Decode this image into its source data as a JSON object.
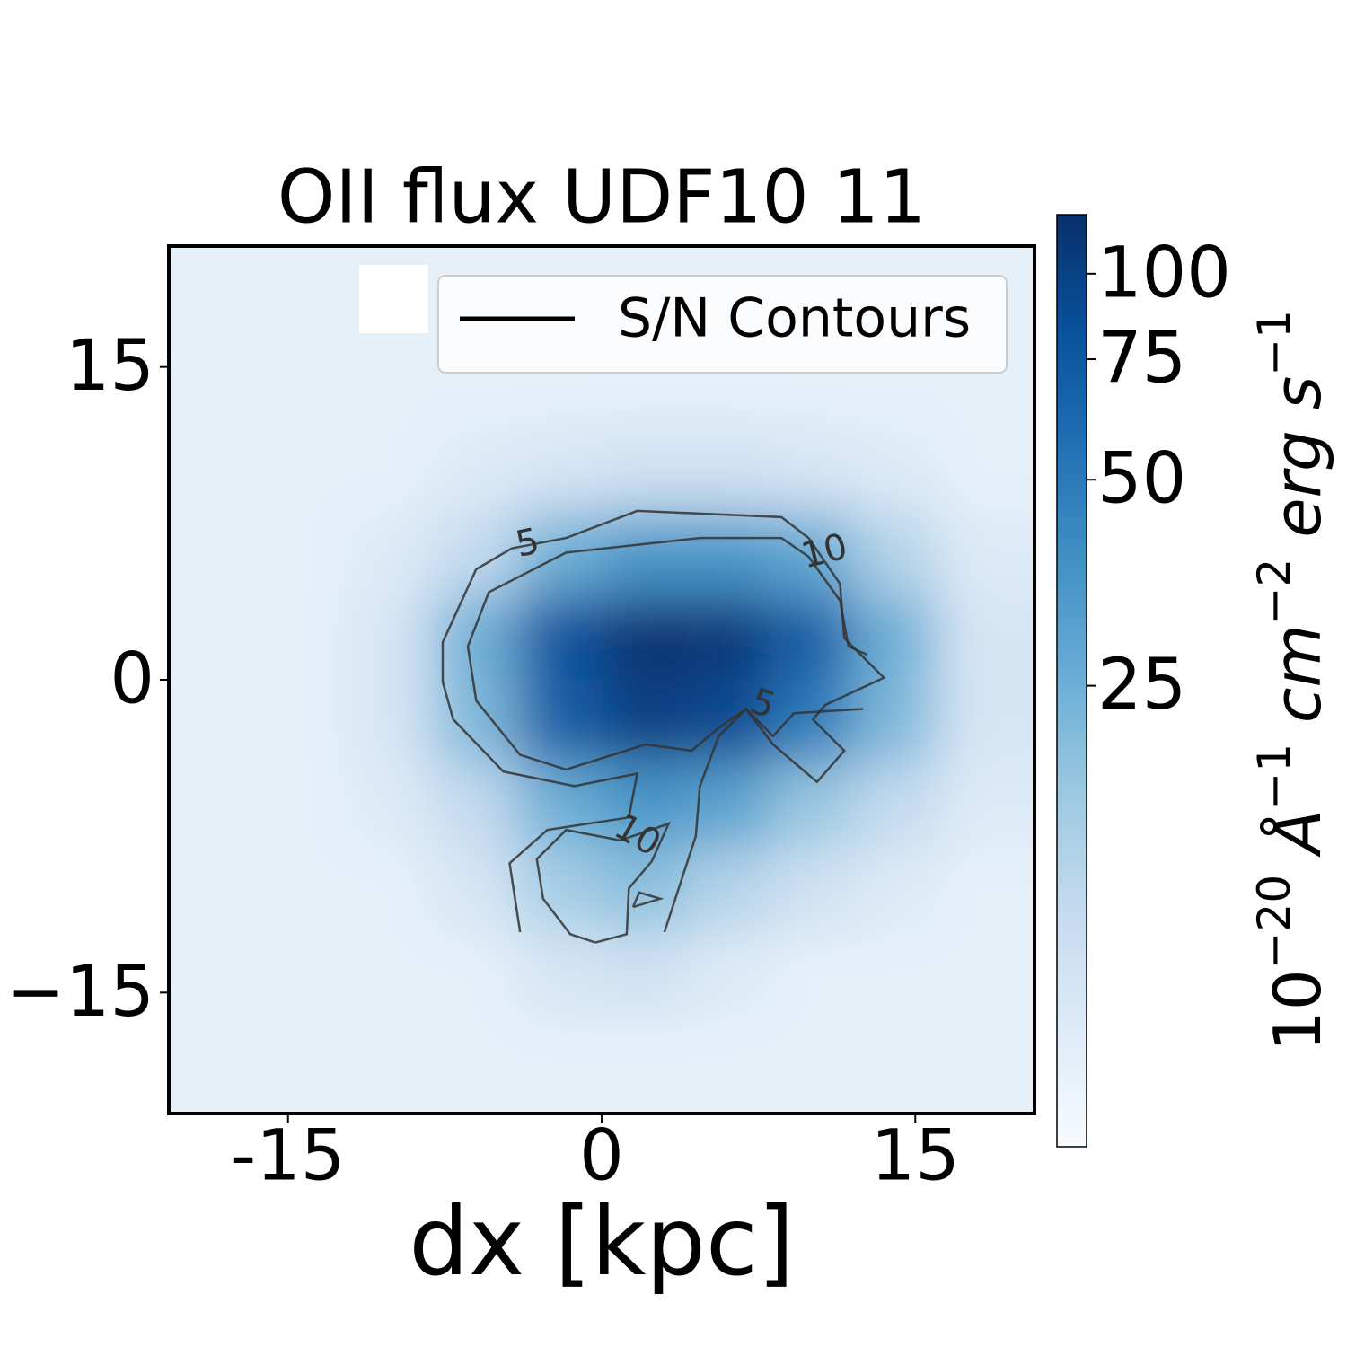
{
  "chart_data": {
    "type": "heatmap",
    "title": "OII flux UDF10 11",
    "xlabel": "dx [kpc]",
    "xlim": [
      -20.7,
      20.7
    ],
    "ylim": [
      -20.8,
      20.8
    ],
    "xticks": [
      -15,
      0,
      15
    ],
    "yticks": [
      {
        "value": -15,
        "label": "−15"
      },
      0,
      15
    ],
    "x": [
      -18,
      -14,
      -10,
      -6,
      -2,
      2,
      6,
      10,
      14,
      18
    ],
    "y": [
      18,
      14,
      10,
      6,
      2,
      -2,
      -6,
      -10,
      -14,
      -18
    ],
    "z": [
      [
        7,
        7,
        7,
        7,
        7,
        7,
        7,
        7,
        7,
        7
      ],
      [
        7,
        7,
        7,
        7,
        7,
        7,
        7,
        7,
        7,
        7
      ],
      [
        7,
        7,
        7,
        8,
        9,
        10,
        10,
        9,
        8,
        7
      ],
      [
        7,
        7,
        8,
        12,
        25,
        35,
        35,
        28,
        14,
        8
      ],
      [
        7,
        7,
        9,
        25,
        80,
        115,
        110,
        70,
        25,
        9
      ],
      [
        7,
        7,
        9,
        22,
        70,
        100,
        90,
        50,
        22,
        9
      ],
      [
        7,
        7,
        8,
        12,
        25,
        35,
        30,
        18,
        12,
        8
      ],
      [
        7,
        7,
        7,
        9,
        16,
        20,
        14,
        10,
        8,
        7
      ],
      [
        7,
        7,
        7,
        7,
        9,
        10,
        8,
        7,
        7,
        7
      ],
      [
        7,
        7,
        7,
        7,
        7,
        7,
        7,
        7,
        7,
        7
      ]
    ],
    "cmap": "Blues",
    "clim": [
      5.3,
      122
    ],
    "color_scale": "log",
    "colorbar_ticks": [
      25,
      50,
      75,
      100
    ],
    "colorbar_label": [
      "10",
      "−20",
      " Å",
      "−1",
      " cm",
      "−2",
      " erg s",
      "−1"
    ],
    "contours": [
      {
        "level": 5,
        "lines": [
          {
            "x": [
              -3.9,
              -4.4,
              -2.6,
              1.3,
              1.7,
              -1.3,
              -4.7,
              -7.1,
              -7.6,
              -7.6,
              -6.0,
              -4.3,
              -1.7,
              1.7,
              8.6,
              9.9,
              11.4,
              11.6,
              13.5,
              10.7,
              10.1,
              11.6,
              10.3,
              8.2,
              6.9,
              5.6,
              4.7,
              4.5,
              3.0
            ],
            "y": [
              -12.1,
              -8.8,
              -7.2,
              -6.6,
              -4.5,
              -5.1,
              -4.4,
              -1.9,
              -0.1,
              1.8,
              5.3,
              6.3,
              6.8,
              8.1,
              7.8,
              6.8,
              4.6,
              2.0,
              0.1,
              -1.2,
              -1.9,
              -3.4,
              -4.9,
              -3.1,
              -1.4,
              -2.7,
              -5.1,
              -7.5,
              -12.1
            ]
          }
        ]
      },
      {
        "level": 10,
        "lines": [
          {
            "x": [
              12.7,
              11.8,
              11.4,
              9.9,
              8.6,
              4.7,
              -1.7,
              -5.4,
              -6.4,
              -6.0,
              -3.9,
              -1.7,
              2.1,
              4.3,
              5.6,
              6.9,
              8.2,
              9.2,
              12.5
            ],
            "y": [
              1.2,
              1.6,
              3.8,
              5.9,
              6.8,
              6.8,
              6.1,
              4.2,
              1.6,
              -1.0,
              -3.6,
              -4.3,
              -3.1,
              -3.4,
              -2.3,
              -1.4,
              -2.7,
              -1.6,
              -1.4
            ]
          },
          {
            "x": [
              -0.3,
              1.2,
              1.3,
              2.4,
              3.2,
              0.9,
              -1.7,
              -3.1,
              -2.8,
              -1.5,
              -0.3
            ],
            "y": [
              -12.6,
              -12.2,
              -10.0,
              -8.7,
              -6.9,
              -7.7,
              -7.2,
              -8.6,
              -10.5,
              -12.2,
              -12.6
            ]
          },
          {
            "x": [
              1.5,
              2.8,
              1.8,
              1.5
            ],
            "y": [
              -10.9,
              -10.5,
              -10.2,
              -10.9
            ]
          }
        ]
      }
    ],
    "contour_color": "#333333",
    "legend": {
      "labels": [
        "S/N Contours"
      ],
      "color": "#000000",
      "loc": "upper right"
    }
  }
}
